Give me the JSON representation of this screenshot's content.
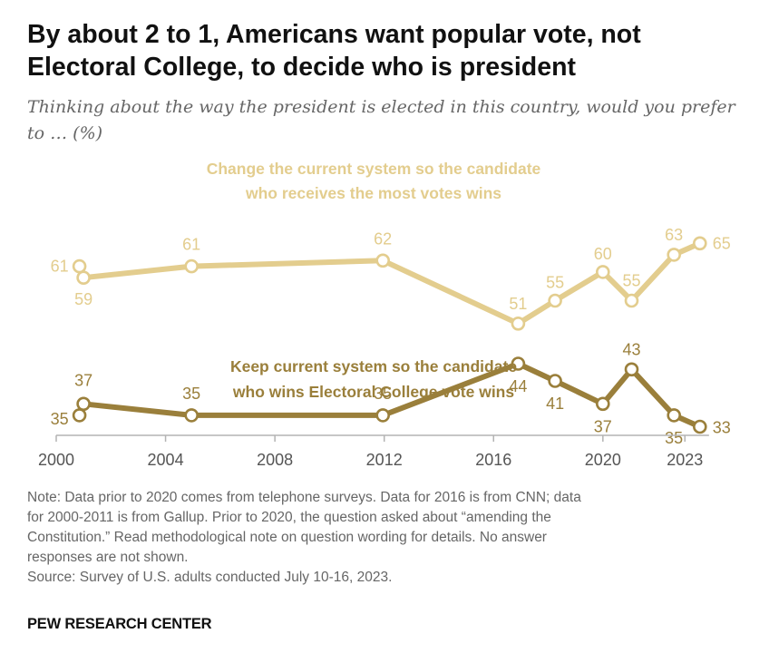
{
  "header": {
    "title": "By about 2 to 1, Americans want popular vote, not Electoral College, to decide who is president",
    "subtitle": "Thinking about the way the president is elected in this country, would you prefer to … (%)"
  },
  "chart_data": {
    "type": "line",
    "title": "",
    "xlabel": "",
    "ylabel": "",
    "xlim": [
      2000,
      2024
    ],
    "ylim": [
      25,
      70
    ],
    "x_ticks": [
      2000,
      2004,
      2008,
      2012,
      2016,
      2020,
      2023
    ],
    "x_tick_labels": [
      "2000",
      "2004",
      "2008",
      "2012",
      "2016",
      "2020",
      "2023"
    ],
    "grid": false,
    "series": [
      {
        "name": "Change the current system so the candidate who receives the most votes wins",
        "label_lines": [
          "Change the current system so the candidate",
          "who receives the most votes wins"
        ],
        "color": "#e3cd8e",
        "points": [
          {
            "x": 2000.85,
            "y": 61
          },
          {
            "x": 2001.0,
            "y": 59
          },
          {
            "x": 2004.95,
            "y": 61
          },
          {
            "x": 2011.95,
            "y": 62
          },
          {
            "x": 2016.9,
            "y": 51
          },
          {
            "x": 2018.25,
            "y": 55
          },
          {
            "x": 2020.0,
            "y": 60
          },
          {
            "x": 2021.05,
            "y": 55
          },
          {
            "x": 2022.6,
            "y": 63
          },
          {
            "x": 2023.55,
            "y": 65
          }
        ]
      },
      {
        "name": "Keep current system so the candidate who wins Electoral College vote wins",
        "label_lines": [
          "Keep current system so the candidate",
          "who wins Electoral College vote wins"
        ],
        "color": "#9a7f3b",
        "points": [
          {
            "x": 2000.85,
            "y": 35
          },
          {
            "x": 2001.0,
            "y": 37
          },
          {
            "x": 2004.95,
            "y": 35
          },
          {
            "x": 2011.95,
            "y": 35
          },
          {
            "x": 2016.9,
            "y": 44
          },
          {
            "x": 2018.25,
            "y": 41
          },
          {
            "x": 2020.0,
            "y": 37
          },
          {
            "x": 2021.05,
            "y": 43
          },
          {
            "x": 2022.6,
            "y": 35
          },
          {
            "x": 2023.55,
            "y": 33
          }
        ]
      }
    ]
  },
  "footer": {
    "note_lines": [
      "Note: Data prior to 2020 comes from telephone surveys. Data for 2016 is from CNN; data",
      "for 2000-2011 is from Gallup. Prior to 2020, the question asked about “amending the",
      "Constitution.” Read methodological note on question wording for details. No answer",
      "responses are not shown."
    ],
    "source": "Survey of U.S. adults conducted July 10-16, 2023.",
    "source_prefix": "Source: ",
    "brand": "PEW RESEARCH CENTER"
  }
}
